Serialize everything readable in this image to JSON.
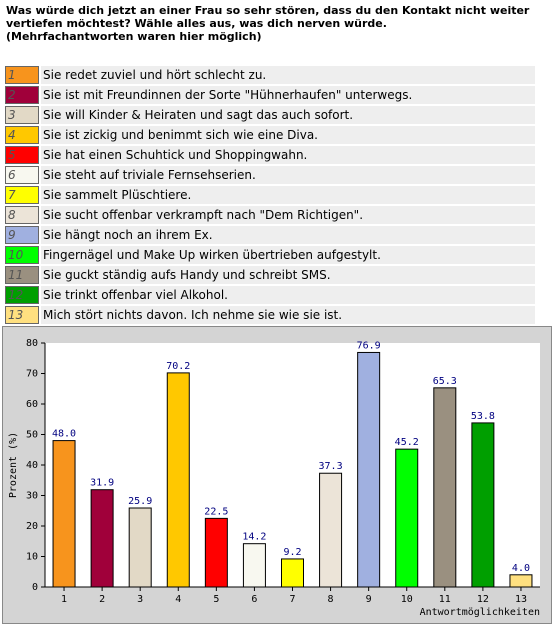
{
  "question": "Was würde dich jetzt an einer Frau so sehr stören, dass du den Kontakt nicht weiter vertiefen möchtest? Wähle alles aus, was dich nerven würde.",
  "note": "(Mehrfachantworten waren hier möglich)",
  "answers": [
    "Sie redet zuviel und hört schlecht zu.",
    "Sie ist mit Freundinnen der Sorte \"Hühnerhaufen\" unterwegs.",
    "Sie will Kinder & Heiraten und sagt das auch sofort.",
    "Sie ist zickig und benimmt sich wie eine Diva.",
    "Sie hat einen Schuhtick und Shoppingwahn.",
    "Sie steht auf triviale Fernsehserien.",
    "Sie sammelt Plüschtiere.",
    "Sie sucht offenbar verkrampft nach \"Dem Richtigen\".",
    "Sie hängt noch an ihrem Ex.",
    "Fingernägel und Make Up wirken übertrieben aufgestylt.",
    "Sie guckt ständig aufs Handy und schreibt SMS.",
    "Sie trinkt offenbar viel Alkohol.",
    "Mich stört nichts davon. Ich nehme sie wie sie ist."
  ],
  "chart_data": {
    "type": "bar",
    "categories": [
      "1",
      "2",
      "3",
      "4",
      "5",
      "6",
      "7",
      "8",
      "9",
      "10",
      "11",
      "12",
      "13"
    ],
    "values": [
      48.0,
      31.9,
      25.9,
      70.2,
      22.5,
      14.2,
      9.2,
      37.3,
      76.9,
      45.2,
      65.3,
      53.8,
      4.0
    ],
    "value_labels": [
      "48.0",
      "31.9",
      "25.9",
      "70.2",
      "22.5",
      "14.2",
      "9.2",
      "37.3",
      "76.9",
      "45.2",
      "65.3",
      "53.8",
      "4.0"
    ],
    "colors": [
      "#f7941d",
      "#a0003a",
      "#e2d9c6",
      "#ffc800",
      "#ff0000",
      "#f8f8f0",
      "#ffff00",
      "#ece4d8",
      "#a0b0e0",
      "#00ff00",
      "#9a9080",
      "#009f00",
      "#ffe080"
    ],
    "ylim": [
      0,
      80
    ],
    "yticks": [
      0,
      10,
      20,
      30,
      40,
      50,
      60,
      70,
      80
    ],
    "ylabel": "Prozent (%)",
    "xlabel": "Antwortmöglichkeiten"
  }
}
